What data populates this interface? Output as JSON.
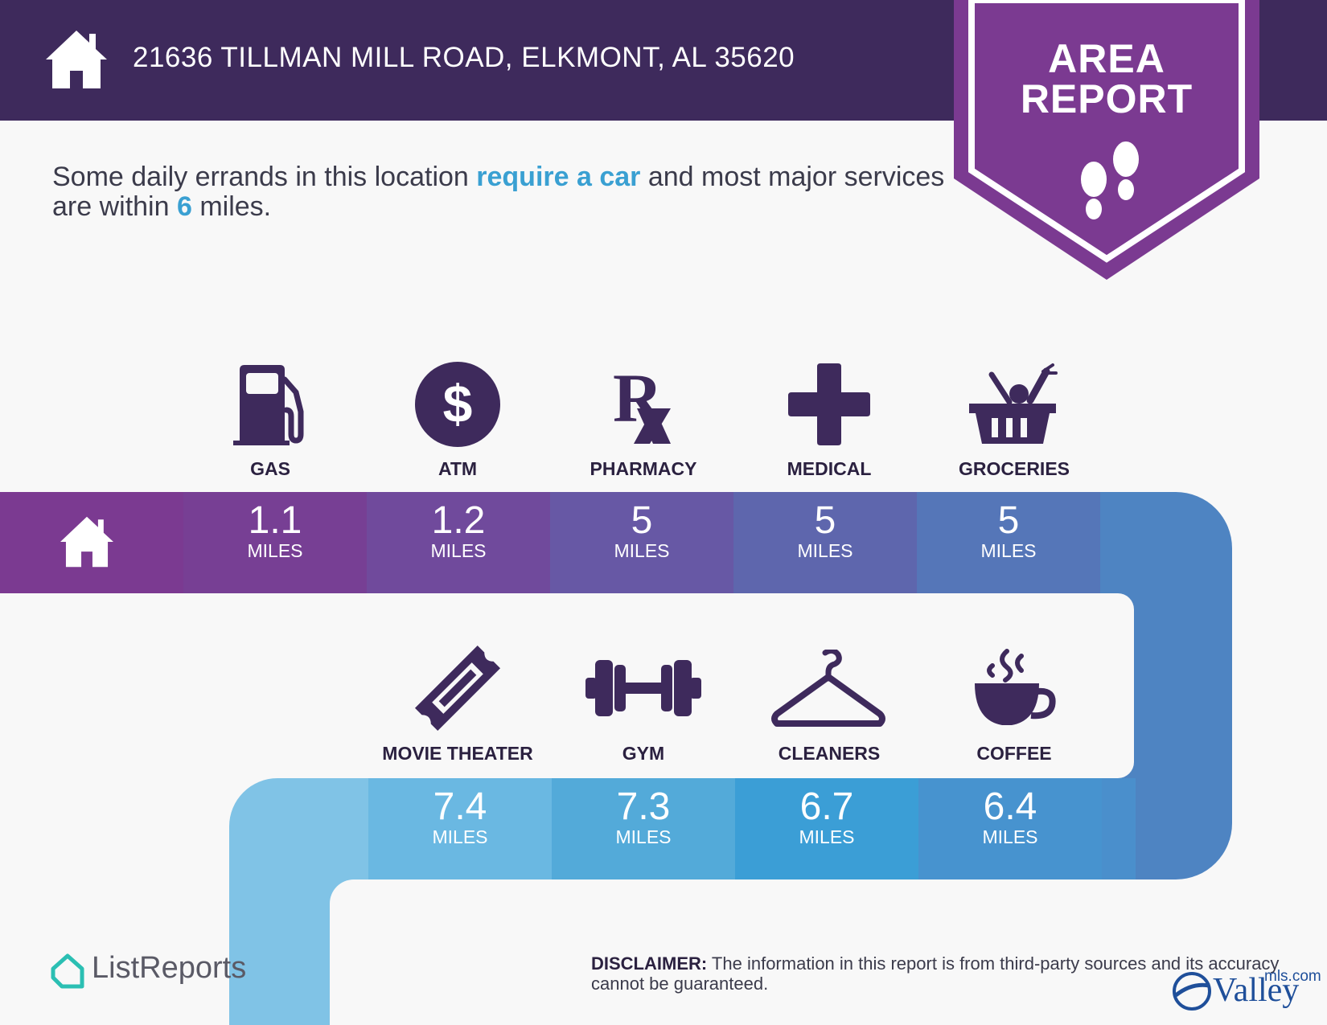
{
  "header": {
    "address": "21636 TILLMAN MILL ROAD, ELKMONT, AL 35620",
    "home_icon": "house-icon",
    "color": "#3e2a5c"
  },
  "badge": {
    "line1": "AREA",
    "line2": "REPORT",
    "icon": "footprints-icon",
    "color": "#7b3a91"
  },
  "summary": {
    "part1": "Some daily errands in this location ",
    "highlight1": "require a car",
    "part2": " and most major services are within ",
    "highlight2": "6",
    "part3": " miles.",
    "highlight_color": "#3aa0d2"
  },
  "row1": [
    {
      "label": "GAS",
      "value": "1.1",
      "unit": "MILES",
      "icon": "gas-pump-icon"
    },
    {
      "label": "ATM",
      "value": "1.2",
      "unit": "MILES",
      "icon": "dollar-icon"
    },
    {
      "label": "PHARMACY",
      "value": "5",
      "unit": "MILES",
      "icon": "rx-icon"
    },
    {
      "label": "MEDICAL",
      "value": "5",
      "unit": "MILES",
      "icon": "medical-cross-icon"
    },
    {
      "label": "GROCERIES",
      "value": "5",
      "unit": "MILES",
      "icon": "grocery-basket-icon"
    }
  ],
  "row2": [
    {
      "label": "MOVIE THEATER",
      "value": "7.4",
      "unit": "MILES",
      "icon": "ticket-icon"
    },
    {
      "label": "GYM",
      "value": "7.3",
      "unit": "MILES",
      "icon": "dumbbell-icon"
    },
    {
      "label": "CLEANERS",
      "value": "6.7",
      "unit": "MILES",
      "icon": "hanger-icon"
    },
    {
      "label": "COFFEE",
      "value": "6.4",
      "unit": "MILES",
      "icon": "coffee-cup-icon"
    }
  ],
  "footer": {
    "disclaimer_label": "DISCLAIMER:",
    "disclaimer_text": " The information in this report is from third-party sources and its accuracy cannot be guaranteed.",
    "brand_left": "ListReports",
    "brand_right": "Valley",
    "brand_right_suffix": "mls.com"
  }
}
